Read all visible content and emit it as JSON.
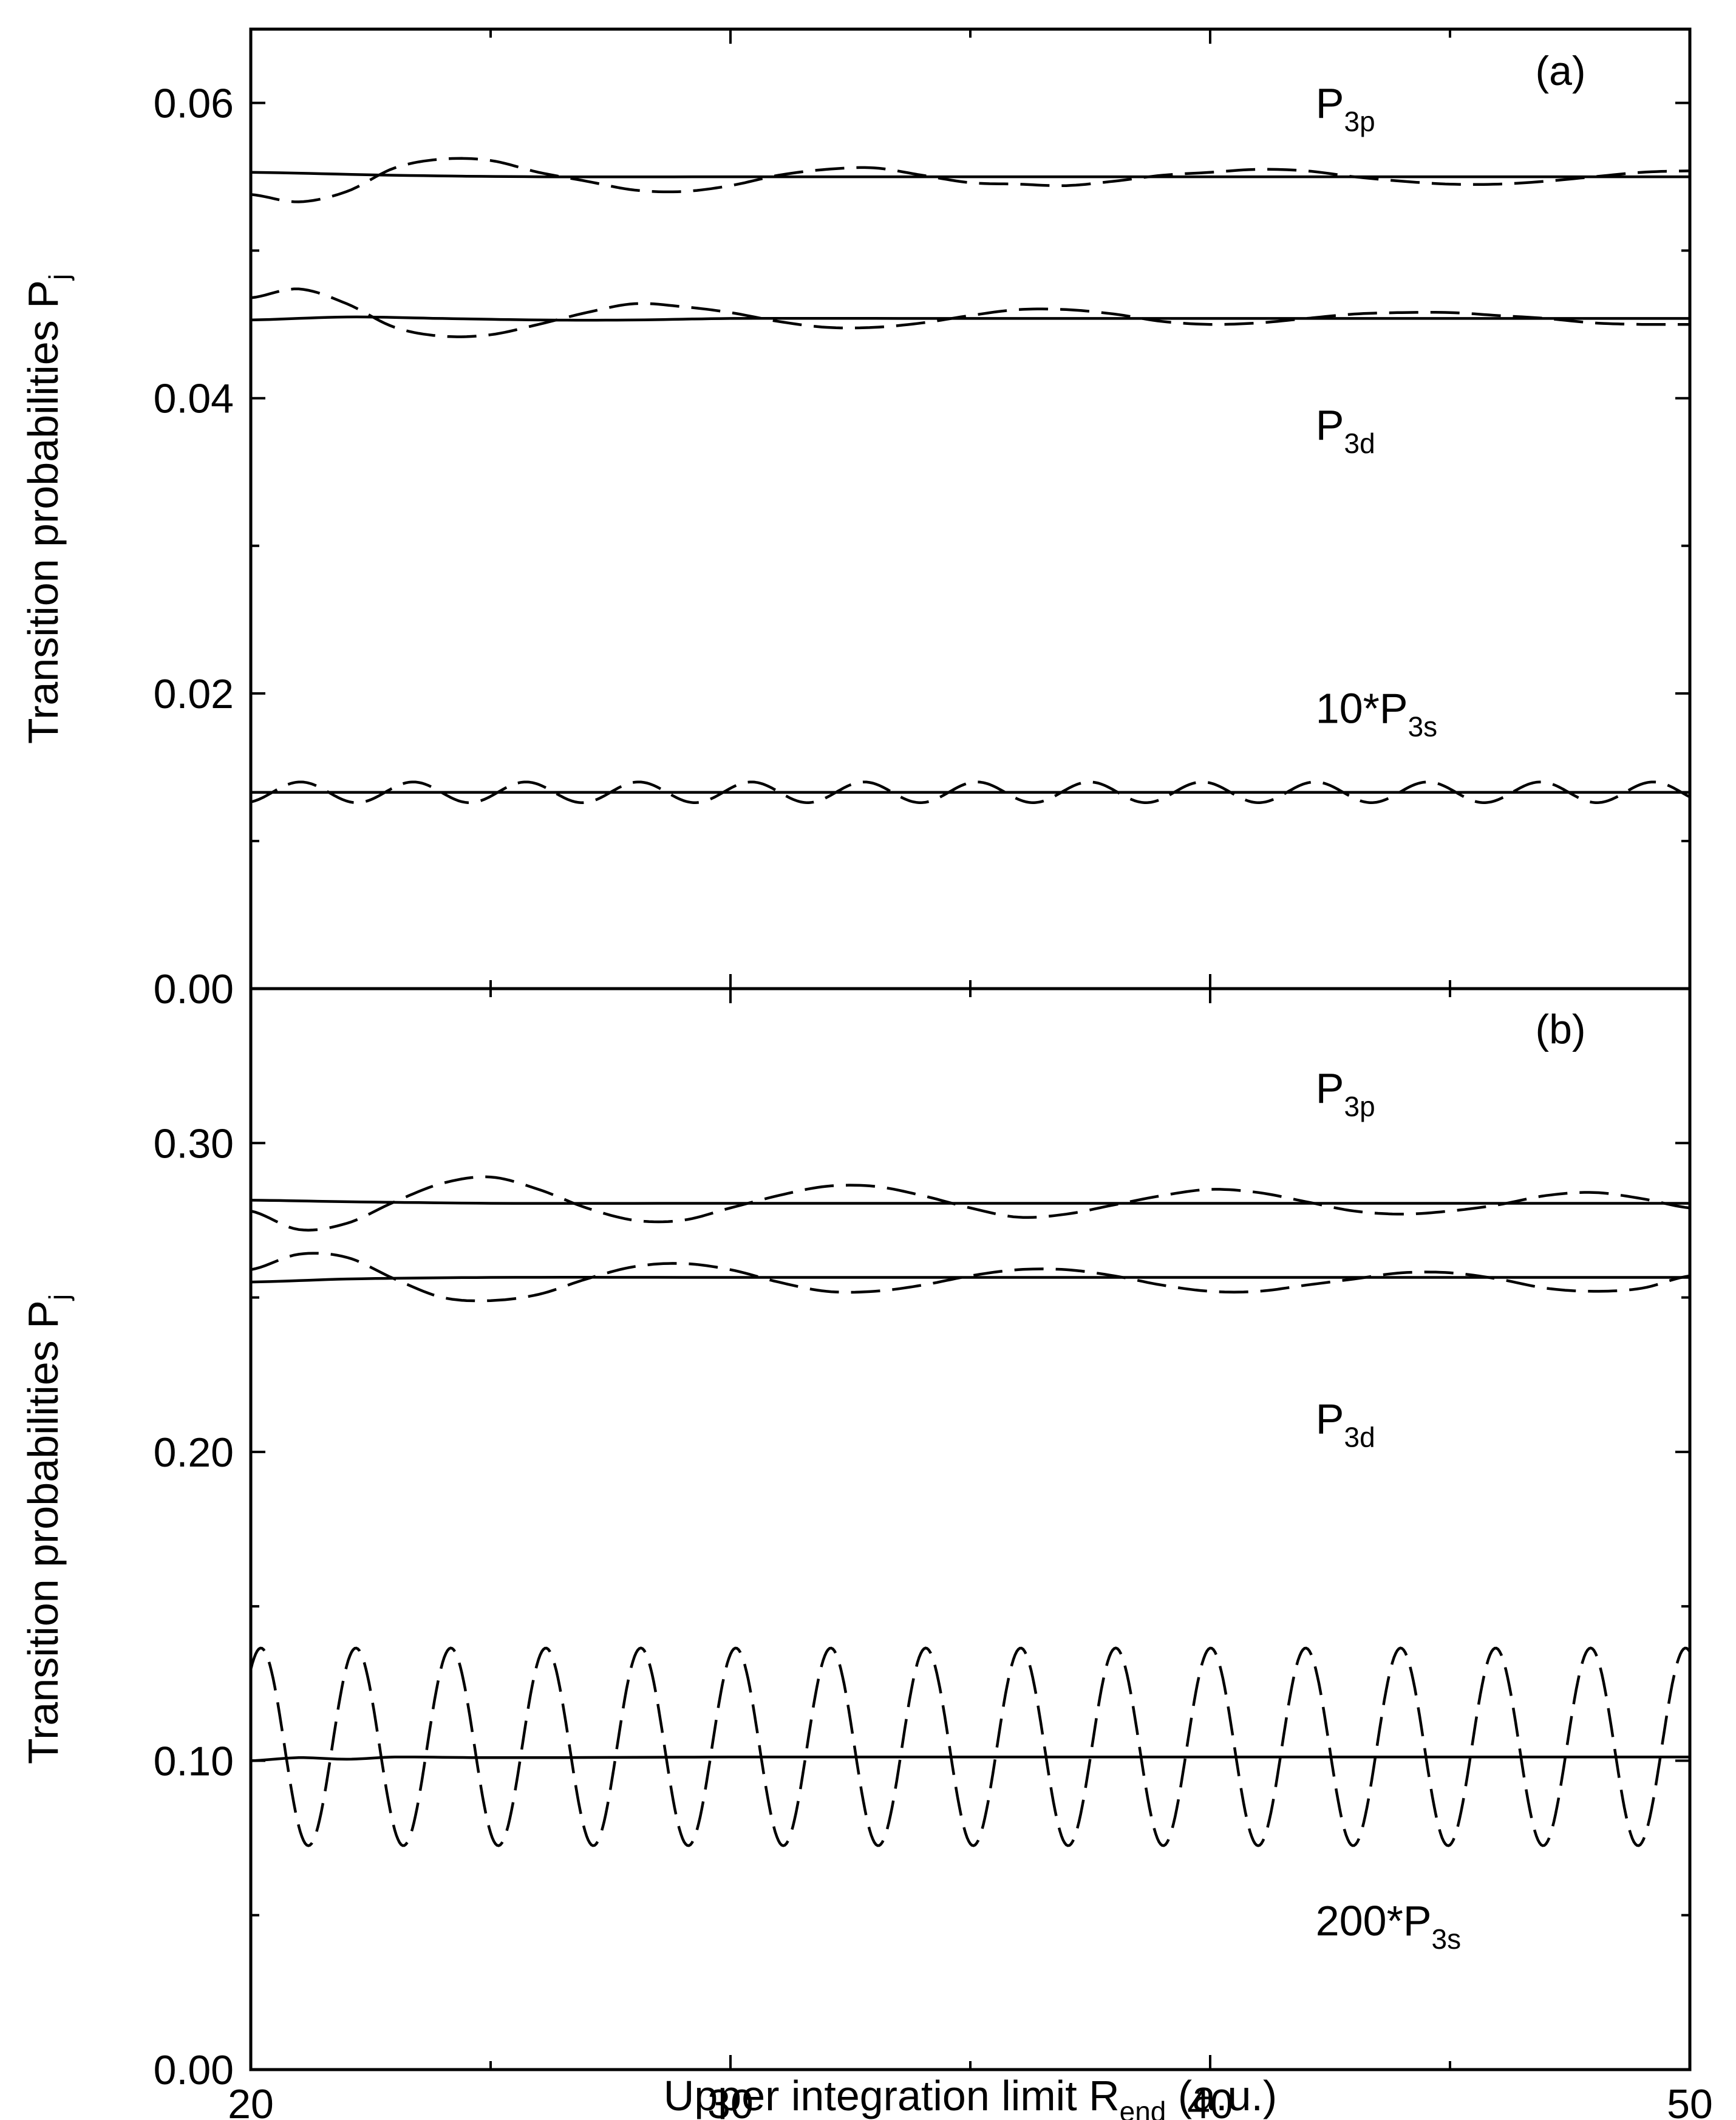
{
  "chart_data": [
    {
      "type": "line",
      "panel": "(a)",
      "xlabel": "Upper integration limit R",
      "xlabel_sub": "end",
      "xlabel_unit": " (a.u.)",
      "ylabel": "Transition probabilities P",
      "ylabel_sub": "j",
      "xlim": [
        20,
        50
      ],
      "ylim": [
        0,
        0.065
      ],
      "xticks": [
        20,
        30,
        40,
        50
      ],
      "yticks": [
        0.0,
        0.02,
        0.04,
        0.06
      ],
      "ytick_labels": [
        "0.00",
        "0.02",
        "0.04",
        "0.06"
      ],
      "y_minor_step": 0.01,
      "annotations": [
        {
          "text": "P",
          "sub": "3p",
          "x": 42.2,
          "y": 0.059
        },
        {
          "text": "P",
          "sub": "3d",
          "x": 42.2,
          "y": 0.0372
        },
        {
          "text": "10*P",
          "sub": "3s",
          "x": 42.2,
          "y": 0.018
        }
      ],
      "series": [
        {
          "name": "P3p",
          "style": "solid",
          "x": [
            20,
            23,
            26,
            30,
            35,
            40,
            45,
            50
          ],
          "y": [
            0.0553,
            0.0551,
            0.055,
            0.055,
            0.055,
            0.055,
            0.055,
            0.055
          ]
        },
        {
          "name": "P3p",
          "style": "dashed",
          "x": [
            20,
            21,
            22,
            23,
            24,
            25,
            26,
            27,
            28,
            29,
            30,
            31,
            32,
            33,
            34,
            35,
            36,
            37,
            38,
            39,
            40,
            41,
            42,
            43,
            44,
            45,
            46,
            47,
            48,
            49,
            50
          ],
          "y": [
            0.0538,
            0.0533,
            0.054,
            0.0556,
            0.0562,
            0.0561,
            0.0553,
            0.0547,
            0.0541,
            0.054,
            0.0544,
            0.0551,
            0.0555,
            0.0556,
            0.0551,
            0.0546,
            0.0545,
            0.0544,
            0.0547,
            0.0551,
            0.0553,
            0.0555,
            0.0554,
            0.055,
            0.0547,
            0.0545,
            0.0545,
            0.0547,
            0.055,
            0.0553,
            0.0554
          ]
        },
        {
          "name": "P3d",
          "style": "solid",
          "x": [
            20,
            22,
            24,
            26,
            28,
            30,
            35,
            40,
            45,
            50
          ],
          "y": [
            0.0453,
            0.0455,
            0.0454,
            0.0453,
            0.0453,
            0.0454,
            0.0454,
            0.0454,
            0.0454,
            0.0454
          ]
        },
        {
          "name": "P3d",
          "style": "dashed",
          "x": [
            20,
            21,
            22,
            23,
            24,
            25,
            26,
            27,
            28,
            29,
            30,
            31,
            32,
            33,
            34,
            35,
            36,
            37,
            38,
            39,
            40,
            41,
            42,
            43,
            44,
            45,
            46,
            47,
            48,
            49,
            50
          ],
          "y": [
            0.0468,
            0.0474,
            0.0464,
            0.0448,
            0.0442,
            0.0443,
            0.045,
            0.0458,
            0.0464,
            0.0462,
            0.0458,
            0.0452,
            0.0448,
            0.0448,
            0.0451,
            0.0456,
            0.046,
            0.046,
            0.0457,
            0.0452,
            0.045,
            0.0451,
            0.0454,
            0.0457,
            0.0458,
            0.0458,
            0.0456,
            0.0454,
            0.0451,
            0.045,
            0.045
          ]
        },
        {
          "name": "10*P3s",
          "style": "solid",
          "x": [
            20,
            50
          ],
          "y": [
            0.0133,
            0.0133
          ]
        },
        {
          "name": "10*P3s",
          "style": "dashed",
          "amplitude": 0.0007,
          "period": 2.35,
          "mean": 0.0133,
          "phase": -1.2,
          "x_range": [
            20,
            50
          ]
        }
      ]
    },
    {
      "type": "line",
      "panel": "(b)",
      "xlabel": "Upper integration limit R",
      "xlabel_sub": "end",
      "xlabel_unit": " (a.u.)",
      "ylabel": "Transition probabilities P",
      "ylabel_sub": "j",
      "xlim": [
        20,
        50
      ],
      "ylim": [
        0,
        0.35
      ],
      "xticks": [
        20,
        30,
        40,
        50
      ],
      "xtick_labels": [
        "20",
        "30",
        "40",
        "50"
      ],
      "yticks": [
        0.0,
        0.1,
        0.2,
        0.3
      ],
      "ytick_labels": [
        "0.00",
        "0.10",
        "0.20",
        "0.30"
      ],
      "y_minor_step": 0.05,
      "annotations": [
        {
          "text": "P",
          "sub": "3p",
          "x": 42.2,
          "y": 0.313
        },
        {
          "text": "P",
          "sub": "3d",
          "x": 42.2,
          "y": 0.206
        },
        {
          "text": "200*P",
          "sub": "3s",
          "x": 42.2,
          "y": 0.0435
        }
      ],
      "series": [
        {
          "name": "P3p",
          "style": "solid",
          "x": [
            20,
            22,
            25,
            30,
            35,
            40,
            45,
            50
          ],
          "y": [
            0.2815,
            0.281,
            0.2805,
            0.2805,
            0.2805,
            0.2805,
            0.2805,
            0.2805
          ]
        },
        {
          "name": "P3p",
          "style": "dashed",
          "x": [
            20,
            21,
            22,
            23,
            24,
            25,
            26,
            27,
            28,
            29,
            30,
            31,
            32,
            33,
            34,
            35,
            36,
            37,
            38,
            39,
            40,
            41,
            42,
            43,
            44,
            45,
            46,
            47,
            48,
            49,
            50
          ],
          "y": [
            0.278,
            0.272,
            0.274,
            0.281,
            0.287,
            0.289,
            0.285,
            0.279,
            0.275,
            0.275,
            0.279,
            0.283,
            0.286,
            0.286,
            0.283,
            0.279,
            0.276,
            0.277,
            0.28,
            0.283,
            0.285,
            0.284,
            0.281,
            0.278,
            0.277,
            0.278,
            0.28,
            0.283,
            0.284,
            0.282,
            0.279
          ]
        },
        {
          "name": "P3d",
          "style": "solid",
          "x": [
            20,
            22,
            25,
            30,
            35,
            40,
            45,
            50
          ],
          "y": [
            0.255,
            0.256,
            0.2565,
            0.2565,
            0.2565,
            0.2565,
            0.2565,
            0.2565
          ]
        },
        {
          "name": "P3d",
          "style": "dashed",
          "x": [
            20,
            21,
            22,
            23,
            24,
            25,
            26,
            27,
            28,
            29,
            30,
            31,
            32,
            33,
            34,
            35,
            36,
            37,
            38,
            39,
            40,
            41,
            42,
            43,
            44,
            45,
            46,
            47,
            48,
            49,
            50
          ],
          "y": [
            0.259,
            0.264,
            0.263,
            0.256,
            0.25,
            0.249,
            0.251,
            0.256,
            0.26,
            0.261,
            0.259,
            0.255,
            0.252,
            0.252,
            0.254,
            0.257,
            0.259,
            0.259,
            0.257,
            0.254,
            0.252,
            0.252,
            0.254,
            0.256,
            0.258,
            0.258,
            0.256,
            0.253,
            0.252,
            0.253,
            0.257
          ]
        },
        {
          "name": "200*P3s",
          "style": "solid",
          "x": [
            20,
            21,
            22,
            23,
            25,
            30,
            35,
            40,
            45,
            50
          ],
          "y": [
            0.1,
            0.101,
            0.1005,
            0.1012,
            0.101,
            0.1012,
            0.1012,
            0.1012,
            0.1012,
            0.1012
          ]
        },
        {
          "name": "200*P3s",
          "style": "dashed",
          "amplitude": 0.032,
          "period": 1.98,
          "mean": 0.1045,
          "phase": 0.9,
          "x_range": [
            20,
            50
          ]
        }
      ]
    }
  ]
}
